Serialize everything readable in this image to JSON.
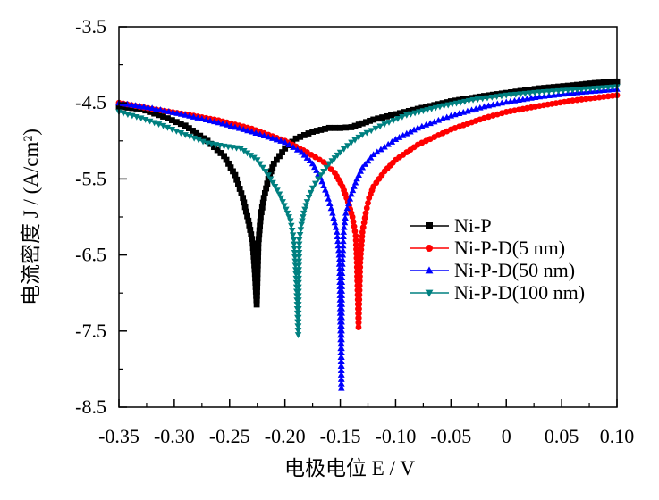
{
  "chart_data": {
    "type": "line",
    "xlabel": "电极电位 E / V",
    "ylabel": "电流密度 J / (A/cm²)",
    "xlim": [
      -0.35,
      0.1
    ],
    "ylim": [
      -8.5,
      -3.5
    ],
    "xticks": [
      "-0.35",
      "-0.30",
      "-0.25",
      "-0.20",
      "-0.15",
      "-0.10",
      "-0.05",
      "0",
      "0.05",
      "0.10"
    ],
    "xtick_values": [
      -0.35,
      -0.3,
      -0.25,
      -0.2,
      -0.15,
      -0.1,
      -0.05,
      0,
      0.05,
      0.1
    ],
    "yticks": [
      "-3.5",
      "-4.5",
      "-5.5",
      "-6.5",
      "-7.5",
      "-8.5"
    ],
    "ytick_values": [
      -3.5,
      -4.5,
      -5.5,
      -6.5,
      -7.5,
      -8.5
    ],
    "grid": false,
    "legend_position": "center-right",
    "series": [
      {
        "name": "Ni-P",
        "color": "#000000",
        "marker": "square",
        "x": [
          -0.35,
          -0.33,
          -0.31,
          -0.29,
          -0.27,
          -0.255,
          -0.245,
          -0.238,
          -0.233,
          -0.229,
          -0.227,
          -0.2255,
          -0.224,
          -0.222,
          -0.219,
          -0.215,
          -0.21,
          -0.2,
          -0.19,
          -0.175,
          -0.16,
          -0.15,
          -0.14,
          -0.13,
          -0.12,
          -0.1,
          -0.08,
          -0.05,
          -0.02,
          0.0,
          0.03,
          0.06,
          0.08,
          0.1
        ],
        "y": [
          -4.55,
          -4.58,
          -4.68,
          -4.8,
          -5.0,
          -5.2,
          -5.45,
          -5.75,
          -6.05,
          -6.35,
          -6.75,
          -7.15,
          -6.35,
          -6.0,
          -5.75,
          -5.5,
          -5.3,
          -5.1,
          -4.97,
          -4.88,
          -4.83,
          -4.83,
          -4.82,
          -4.77,
          -4.72,
          -4.65,
          -4.58,
          -4.48,
          -4.41,
          -4.37,
          -4.31,
          -4.27,
          -4.24,
          -4.22
        ]
      },
      {
        "name": "Ni-P-D(5 nm)",
        "color": "#ff0000",
        "marker": "circle",
        "x": [
          -0.35,
          -0.32,
          -0.29,
          -0.26,
          -0.23,
          -0.2,
          -0.18,
          -0.165,
          -0.155,
          -0.148,
          -0.143,
          -0.139,
          -0.136,
          -0.135,
          -0.1335,
          -0.132,
          -0.13,
          -0.127,
          -0.124,
          -0.12,
          -0.11,
          -0.1,
          -0.08,
          -0.05,
          -0.02,
          0.0,
          0.03,
          0.06,
          0.1
        ],
        "y": [
          -4.5,
          -4.58,
          -4.65,
          -4.73,
          -4.84,
          -5.0,
          -5.15,
          -5.28,
          -5.42,
          -5.6,
          -5.8,
          -6.0,
          -6.25,
          -6.6,
          -7.45,
          -6.6,
          -6.2,
          -5.95,
          -5.75,
          -5.6,
          -5.4,
          -5.25,
          -5.05,
          -4.85,
          -4.7,
          -4.62,
          -4.54,
          -4.47,
          -4.4
        ]
      },
      {
        "name": "Ni-P-D(50 nm)",
        "color": "#0000ff",
        "marker": "triangle-up",
        "x": [
          -0.35,
          -0.32,
          -0.29,
          -0.26,
          -0.23,
          -0.2,
          -0.185,
          -0.175,
          -0.168,
          -0.162,
          -0.157,
          -0.153,
          -0.151,
          -0.1505,
          -0.149,
          -0.1485,
          -0.147,
          -0.145,
          -0.14,
          -0.135,
          -0.13,
          -0.12,
          -0.1,
          -0.08,
          -0.05,
          -0.02,
          0.0,
          0.03,
          0.06,
          0.1
        ],
        "y": [
          -4.5,
          -4.57,
          -4.66,
          -4.76,
          -4.88,
          -5.02,
          -5.15,
          -5.3,
          -5.48,
          -5.7,
          -5.95,
          -6.2,
          -6.5,
          -6.8,
          -8.25,
          -6.8,
          -6.2,
          -5.95,
          -5.7,
          -5.5,
          -5.35,
          -5.18,
          -4.98,
          -4.83,
          -4.67,
          -4.55,
          -4.49,
          -4.42,
          -4.37,
          -4.32
        ]
      },
      {
        "name": "Ni-P-D(100 nm)",
        "color": "#008080",
        "marker": "triangle-down",
        "x": [
          -0.35,
          -0.33,
          -0.31,
          -0.29,
          -0.27,
          -0.255,
          -0.24,
          -0.225,
          -0.215,
          -0.205,
          -0.199,
          -0.195,
          -0.192,
          -0.19,
          -0.188,
          -0.1875,
          -0.187,
          -0.185,
          -0.183,
          -0.18,
          -0.175,
          -0.17,
          -0.16,
          -0.15,
          -0.14,
          -0.13,
          -0.11,
          -0.09,
          -0.06,
          -0.03,
          0.0,
          0.03,
          0.06,
          0.1
        ],
        "y": [
          -4.62,
          -4.7,
          -4.8,
          -4.92,
          -5.03,
          -5.07,
          -5.1,
          -5.25,
          -5.45,
          -5.7,
          -5.9,
          -6.05,
          -6.3,
          -6.75,
          -7.55,
          -6.75,
          -6.3,
          -6.1,
          -5.95,
          -5.8,
          -5.62,
          -5.5,
          -5.3,
          -5.15,
          -5.02,
          -4.92,
          -4.78,
          -4.66,
          -4.55,
          -4.46,
          -4.4,
          -4.36,
          -4.33,
          -4.29
        ]
      }
    ]
  }
}
